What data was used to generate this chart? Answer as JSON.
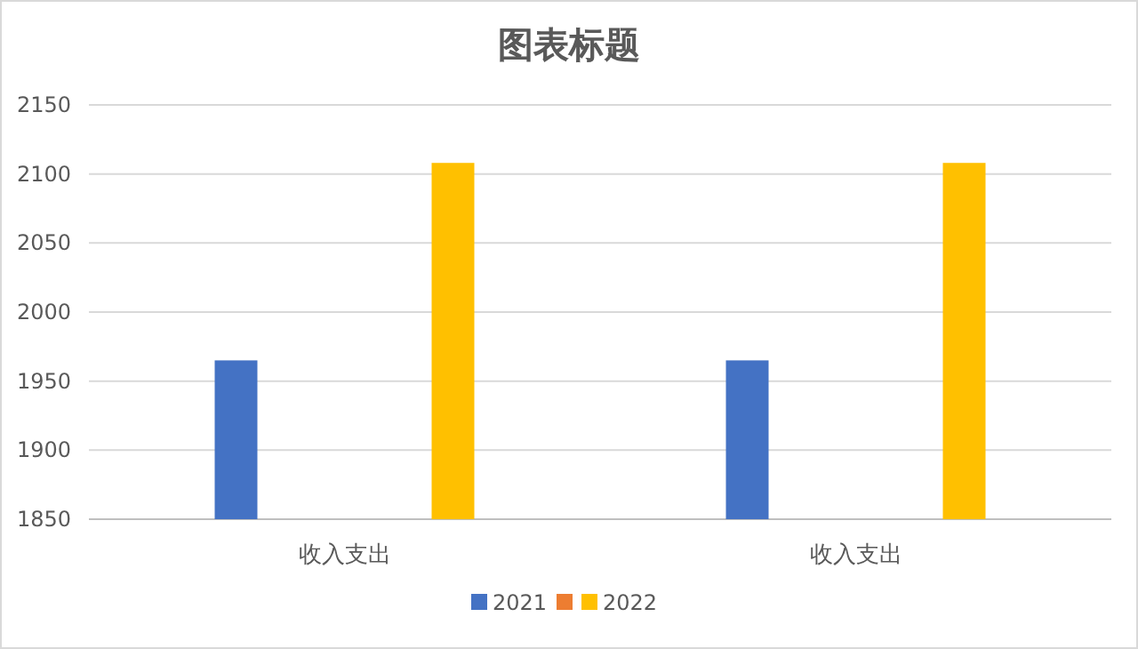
{
  "chart_data": {
    "type": "bar",
    "title": "图表标题",
    "categories": [
      "收入支出",
      "收入支出"
    ],
    "series": [
      {
        "name": "2021",
        "color": "#4472c4",
        "values": [
          1965,
          1965
        ]
      },
      {
        "color": "#ed7d31",
        "values": [
          null,
          null
        ]
      },
      {
        "name": "2022",
        "color": "#ffc000",
        "values": [
          2108,
          2108
        ]
      }
    ],
    "ylim": [
      1850,
      2150
    ],
    "yticks": [
      1850,
      1900,
      1950,
      2000,
      2050,
      2100,
      2150
    ],
    "grid": "y",
    "legend": "bottom"
  }
}
